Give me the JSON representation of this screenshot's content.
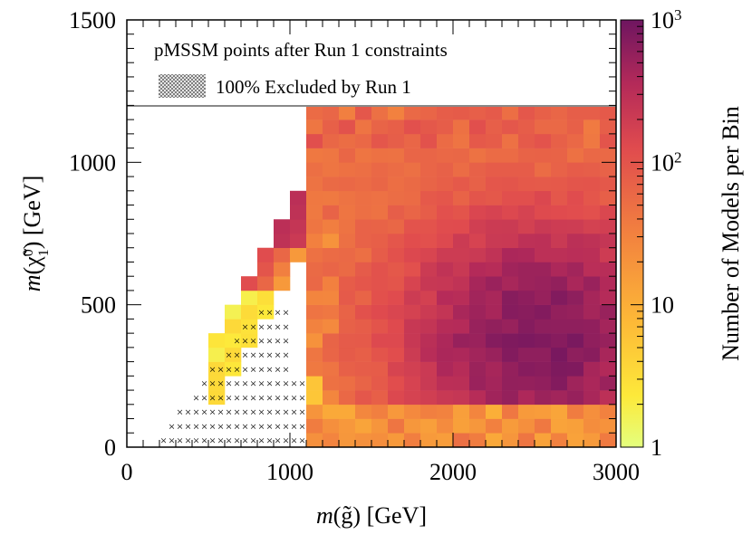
{
  "chart_data": {
    "type": "heatmap",
    "title": "",
    "xlabel_math": "m",
    "xlabel_symbol": "g̃",
    "xlabel_unit": "[GeV]",
    "ylabel_math": "m",
    "ylabel_symbol": "χ̃",
    "ylabel_sub": "1",
    "ylabel_sup": "0",
    "ylabel_unit": "[GeV]",
    "xlim": [
      0,
      3000
    ],
    "ylim": [
      0,
      1500
    ],
    "xticks": [
      0,
      1000,
      2000,
      3000
    ],
    "xtick_labels": [
      "0",
      "1000",
      "2000",
      "3000"
    ],
    "yticks": [
      0,
      500,
      1000,
      1500
    ],
    "ytick_labels": [
      "0",
      "500",
      "1000",
      "1500"
    ],
    "bin_width_x": 100,
    "bin_width_y": 50,
    "colorbar": {
      "label": "Number of Models per Bin",
      "scale": "log",
      "range": [
        1,
        1000
      ],
      "tick_bases": [
        "1",
        "10",
        "10",
        "10"
      ],
      "tick_exponents": [
        "",
        "",
        "2",
        "3"
      ],
      "tick_values": [
        1,
        10,
        100,
        1000
      ]
    },
    "legend": {
      "placement": "top",
      "title": "pMSSM points after Run 1 constraints",
      "entries": [
        {
          "label": "100% Excluded by Run 1",
          "style": "crosshatch"
        }
      ]
    },
    "excluded_bins_description": "crosshatch region at low gluino mass",
    "regions": [
      {
        "name": "populated",
        "x_min": 1100,
        "y_min": 0,
        "y_max": 1200
      },
      {
        "name": "low-LSP band",
        "y_max": 150,
        "typical_models_per_bin": 20
      },
      {
        "name": "dense core",
        "x_range": [
          2000,
          3000
        ],
        "y_range": [
          250,
          600
        ],
        "typical_models_per_bin": 600
      },
      {
        "name": "diagonal edge",
        "description": "m(chi) slightly below m(g)",
        "typical_models_per_bin": 400
      }
    ]
  }
}
